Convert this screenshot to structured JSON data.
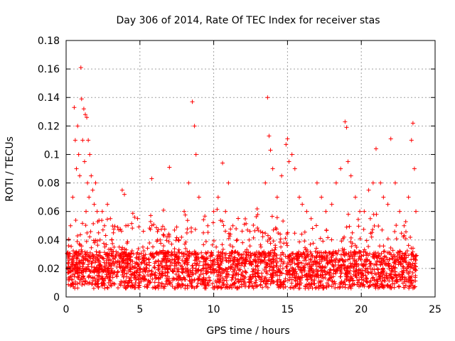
{
  "chart_data": {
    "type": "scatter",
    "title": "Day 306 of 2014, Rate Of TEC Index for receiver stas",
    "xlabel": "GPS time / hours",
    "ylabel": "ROTI / TECUs",
    "xlim": [
      0,
      25
    ],
    "ylim": [
      0,
      0.18
    ],
    "xticks": [
      "0",
      "5",
      "10",
      "15",
      "20",
      "25"
    ],
    "yticks": [
      "0",
      "0.02",
      "0.04",
      "0.06",
      "0.08",
      "0.1",
      "0.12",
      "0.14",
      "0.16",
      "0.18"
    ],
    "grid": true,
    "marker": "+",
    "series_color": "#ff0000",
    "series": [
      {
        "name": "ROTI",
        "x": [
          0.1,
          0.3,
          0.45,
          0.55,
          0.62,
          0.7,
          0.78,
          0.85,
          0.92,
          1.0,
          1.05,
          1.12,
          1.2,
          1.25,
          1.3,
          1.35,
          1.4,
          1.45,
          1.5,
          1.55,
          1.6,
          1.7,
          1.8,
          1.9,
          2.0,
          2.1,
          2.2,
          2.3,
          2.45,
          2.6,
          2.8,
          3.0,
          3.1,
          3.2,
          3.4,
          3.6,
          3.8,
          3.95,
          4.05,
          4.2,
          4.5,
          4.8,
          5.2,
          5.8,
          6.2,
          6.6,
          7.0,
          7.2,
          7.6,
          8.0,
          8.3,
          8.55,
          8.7,
          8.8,
          9.0,
          9.3,
          9.6,
          10.0,
          10.3,
          10.6,
          10.8,
          11.0,
          11.3,
          11.6,
          12.0,
          12.4,
          12.8,
          13.2,
          13.5,
          13.65,
          13.75,
          13.85,
          14.0,
          14.3,
          14.6,
          14.9,
          15.0,
          15.1,
          15.3,
          15.5,
          15.8,
          16.0,
          16.3,
          16.6,
          17.0,
          17.3,
          17.6,
          18.0,
          18.3,
          18.6,
          18.9,
          19.0,
          19.1,
          19.3,
          19.6,
          19.9,
          20.2,
          20.5,
          20.8,
          21.0,
          21.3,
          21.5,
          21.8,
          22.0,
          22.3,
          22.6,
          22.9,
          23.2,
          23.4,
          23.5,
          23.6,
          23.7
        ],
        "y": [
          0.02,
          0.05,
          0.07,
          0.133,
          0.11,
          0.09,
          0.12,
          0.1,
          0.085,
          0.161,
          0.139,
          0.11,
          0.132,
          0.095,
          0.128,
          0.06,
          0.126,
          0.08,
          0.11,
          0.07,
          0.1,
          0.085,
          0.075,
          0.065,
          0.08,
          0.06,
          0.045,
          0.04,
          0.06,
          0.05,
          0.065,
          0.055,
          0.04,
          0.045,
          0.03,
          0.035,
          0.075,
          0.072,
          0.05,
          0.03,
          0.025,
          0.02,
          0.035,
          0.083,
          0.04,
          0.03,
          0.091,
          0.03,
          0.04,
          0.06,
          0.08,
          0.137,
          0.12,
          0.1,
          0.07,
          0.045,
          0.05,
          0.06,
          0.07,
          0.094,
          0.06,
          0.08,
          0.05,
          0.04,
          0.03,
          0.04,
          0.025,
          0.035,
          0.08,
          0.14,
          0.113,
          0.103,
          0.09,
          0.07,
          0.085,
          0.107,
          0.111,
          0.095,
          0.1,
          0.09,
          0.07,
          0.065,
          0.06,
          0.055,
          0.08,
          0.07,
          0.06,
          0.065,
          0.08,
          0.09,
          0.123,
          0.119,
          0.095,
          0.085,
          0.07,
          0.06,
          0.06,
          0.075,
          0.08,
          0.104,
          0.08,
          0.07,
          0.065,
          0.111,
          0.08,
          0.06,
          0.05,
          0.07,
          0.11,
          0.122,
          0.09,
          0.06
        ]
      }
    ]
  }
}
